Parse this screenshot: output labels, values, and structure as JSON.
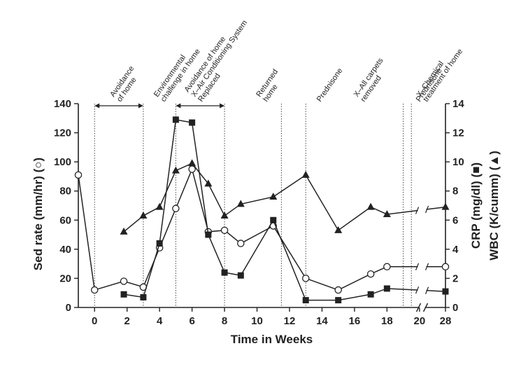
{
  "chart_data": {
    "type": "line",
    "title": "",
    "xlabel": "Time in Weeks",
    "ylabel_left": "Sed rate (mm/hr) (○)",
    "ylabel_right_1": "CRP (mg/dl) (■)",
    "ylabel_right_2": "WBC (K/cumm) (▲)",
    "x_ticks": [
      "0",
      "2",
      "4",
      "6",
      "8",
      "10",
      "12",
      "14",
      "16",
      "18",
      "20",
      "28"
    ],
    "x_break_after": 20,
    "x_break_value": 28,
    "x_range": [
      -1,
      21.6
    ],
    "y_left_ticks": [
      "0",
      "20",
      "40",
      "60",
      "80",
      "100",
      "120",
      "140"
    ],
    "y_left_range": [
      0,
      140
    ],
    "y_right_ticks": [
      "0",
      "2",
      "4",
      "6",
      "8",
      "10",
      "12",
      "14"
    ],
    "y_right_range": [
      0,
      14
    ],
    "series": [
      {
        "name": "Sed rate",
        "marker": "circle-open",
        "axis": "left",
        "x": [
          -1,
          0,
          1.8,
          3,
          4,
          5,
          6,
          7,
          8,
          9,
          11,
          13,
          15,
          17,
          18,
          28
        ],
        "y": [
          91,
          12,
          18,
          14,
          41,
          68,
          95,
          52,
          53,
          44,
          56,
          20,
          12,
          23,
          28,
          28
        ]
      },
      {
        "name": "CRP",
        "marker": "square-filled",
        "axis": "right",
        "x": [
          1.8,
          3,
          4,
          5,
          6,
          7,
          8,
          9,
          11,
          13,
          15,
          17,
          18,
          28
        ],
        "y": [
          0.9,
          0.7,
          4.4,
          12.9,
          12.7,
          5.0,
          2.4,
          2.2,
          6.0,
          0.5,
          0.5,
          0.9,
          1.3,
          1.1
        ]
      },
      {
        "name": "WBC",
        "marker": "triangle-filled",
        "axis": "right",
        "x": [
          1.8,
          3,
          4,
          5,
          6,
          7,
          8,
          9,
          11,
          13,
          15,
          17,
          18,
          28
        ],
        "y": [
          5.2,
          6.3,
          6.9,
          9.4,
          9.9,
          8.5,
          6.3,
          7.1,
          7.6,
          9.1,
          5.3,
          6.9,
          6.4,
          6.9
        ]
      }
    ],
    "vlines": [
      0,
      3,
      5,
      8,
      11.5,
      13,
      19,
      19.5
    ],
    "range_arrows": [
      {
        "from": 0,
        "to": 3
      },
      {
        "from": 5,
        "to": 8
      }
    ],
    "annotations": [
      {
        "x": 1.6,
        "lines": [
          "Avoidance",
          "of home"
        ]
      },
      {
        "x": 4.3,
        "lines": [
          "Environmental",
          "challenge in home"
        ]
      },
      {
        "x": 6.6,
        "lines": [
          "Avoidance of home",
          "X–Air Conditioning System",
          "Replaced"
        ]
      },
      {
        "x": 10.6,
        "lines": [
          "Returned",
          "home"
        ]
      },
      {
        "x": 13.9,
        "lines": [
          "Prednisone"
        ]
      },
      {
        "x": 16.6,
        "lines": [
          "X–All carpets",
          "removed"
        ]
      },
      {
        "x": 20.1,
        "lines": [
          "Prednisone"
        ]
      },
      {
        "x": 22.3,
        "lines": [
          "X–Chemical",
          "treatment of home"
        ]
      }
    ]
  }
}
